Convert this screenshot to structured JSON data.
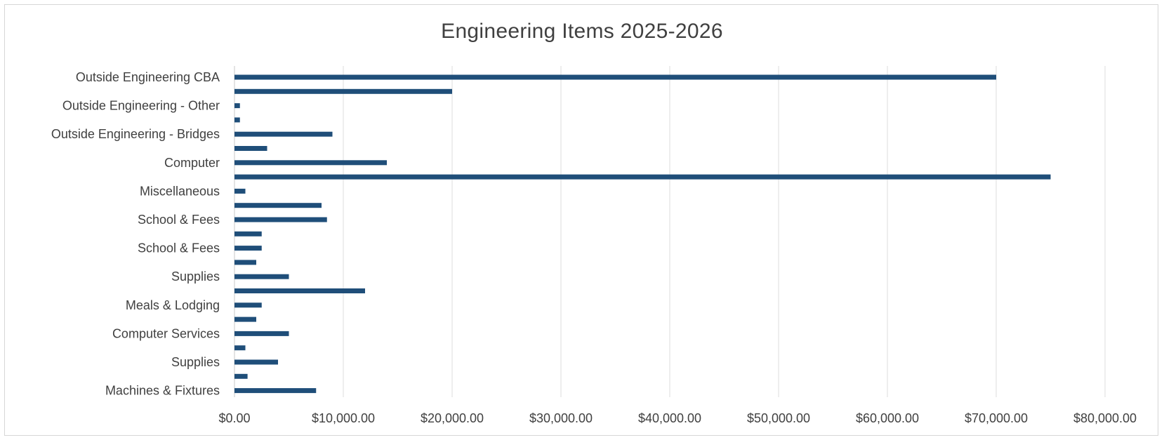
{
  "chart_data": {
    "type": "bar",
    "orientation": "horizontal",
    "title": "Engineering Items 2025-2026",
    "xlabel": "",
    "ylabel": "",
    "xlim": [
      0,
      80000
    ],
    "grid": true,
    "legend": "none",
    "bar_color": "#1f4e79",
    "x_tick_labels": [
      "$0.00",
      "$10,000.00",
      "$20,000.00",
      "$30,000.00",
      "$40,000.00",
      "$50,000.00",
      "$60,000.00",
      "$70,000.00",
      "$80,000.00"
    ],
    "x_ticks": [
      0,
      10000,
      20000,
      30000,
      40000,
      50000,
      60000,
      70000,
      80000
    ],
    "bars": [
      {
        "label": "Outside Engineering CBA",
        "value": 70000
      },
      {
        "label": "",
        "value": 20000
      },
      {
        "label": "Outside Engineering - Other",
        "value": 500
      },
      {
        "label": "",
        "value": 500
      },
      {
        "label": "Outside Engineering - Bridges",
        "value": 9000
      },
      {
        "label": "",
        "value": 3000
      },
      {
        "label": "Computer",
        "value": 14000
      },
      {
        "label": "",
        "value": 75000
      },
      {
        "label": "Miscellaneous",
        "value": 1000
      },
      {
        "label": "",
        "value": 8000
      },
      {
        "label": "School & Fees",
        "value": 8500
      },
      {
        "label": "",
        "value": 2500
      },
      {
        "label": "School & Fees",
        "value": 2500
      },
      {
        "label": "",
        "value": 2000
      },
      {
        "label": "Supplies",
        "value": 5000
      },
      {
        "label": "",
        "value": 12000
      },
      {
        "label": "Meals & Lodging",
        "value": 2500
      },
      {
        "label": "",
        "value": 2000
      },
      {
        "label": "Computer Services",
        "value": 5000
      },
      {
        "label": "",
        "value": 1000
      },
      {
        "label": "Supplies",
        "value": 4000
      },
      {
        "label": "",
        "value": 1200
      },
      {
        "label": "Machines & Fixtures",
        "value": 7500
      }
    ]
  }
}
